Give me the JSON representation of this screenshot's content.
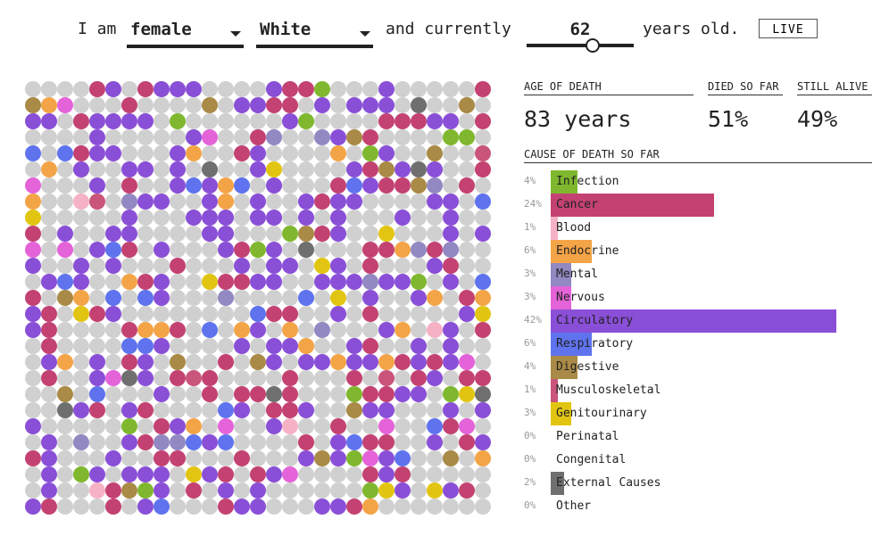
{
  "header": {
    "text_i_am": "I am",
    "sex": "female",
    "race": "White",
    "text_currently": "and currently",
    "age": "62",
    "age_min": 0,
    "age_max": 100,
    "text_years_old": "years old.",
    "live_label": "LIVE"
  },
  "stats": {
    "age_of_death_label": "AGE OF DEATH",
    "age_of_death_value": "83 years",
    "died_label": "DIED SO FAR",
    "died_value": "51%",
    "alive_label": "STILL ALIVE",
    "alive_value": "49%"
  },
  "cause_title": "CAUSE OF DEATH SO FAR",
  "colors": {
    "alive": "#d0d0d0",
    "Infection": "#7fb82e",
    "Cancer": "#c34272",
    "Blood": "#f5b2c5",
    "Endocrine": "#f3a447",
    "Mental": "#9288c2",
    "Nervous": "#e463d9",
    "Circulatory": "#8a4fd7",
    "Respiratory": "#5f73ee",
    "Digestive": "#a98a46",
    "Musculoskeletal": "#c9557a",
    "Genitourinary": "#e2c512",
    "Perinatal": "#cccccc",
    "Congenital": "#cccccc",
    "External Causes": "#6f6f6f",
    "Other": "#cccccc"
  },
  "causes": [
    {
      "name": "Infection",
      "pct": "4%",
      "value": 4
    },
    {
      "name": "Cancer",
      "pct": "24%",
      "value": 24
    },
    {
      "name": "Blood",
      "pct": "1%",
      "value": 1
    },
    {
      "name": "Endocrine",
      "pct": "6%",
      "value": 6
    },
    {
      "name": "Mental",
      "pct": "3%",
      "value": 3
    },
    {
      "name": "Nervous",
      "pct": "3%",
      "value": 3
    },
    {
      "name": "Circulatory",
      "pct": "42%",
      "value": 42
    },
    {
      "name": "Respiratory",
      "pct": "6%",
      "value": 6
    },
    {
      "name": "Digestive",
      "pct": "4%",
      "value": 4
    },
    {
      "name": "Musculoskeletal",
      "pct": "1%",
      "value": 1
    },
    {
      "name": "Genitourinary",
      "pct": "3%",
      "value": 3
    },
    {
      "name": "Perinatal",
      "pct": "0%",
      "value": 0
    },
    {
      "name": "Congenital",
      "pct": "0%",
      "value": 0
    },
    {
      "name": "External Causes",
      "pct": "2%",
      "value": 2
    },
    {
      "name": "Other",
      "pct": "0%",
      "value": 0
    }
  ],
  "dot_grid": {
    "rows": 27,
    "cols": 29,
    "died_fraction": 0.51
  }
}
